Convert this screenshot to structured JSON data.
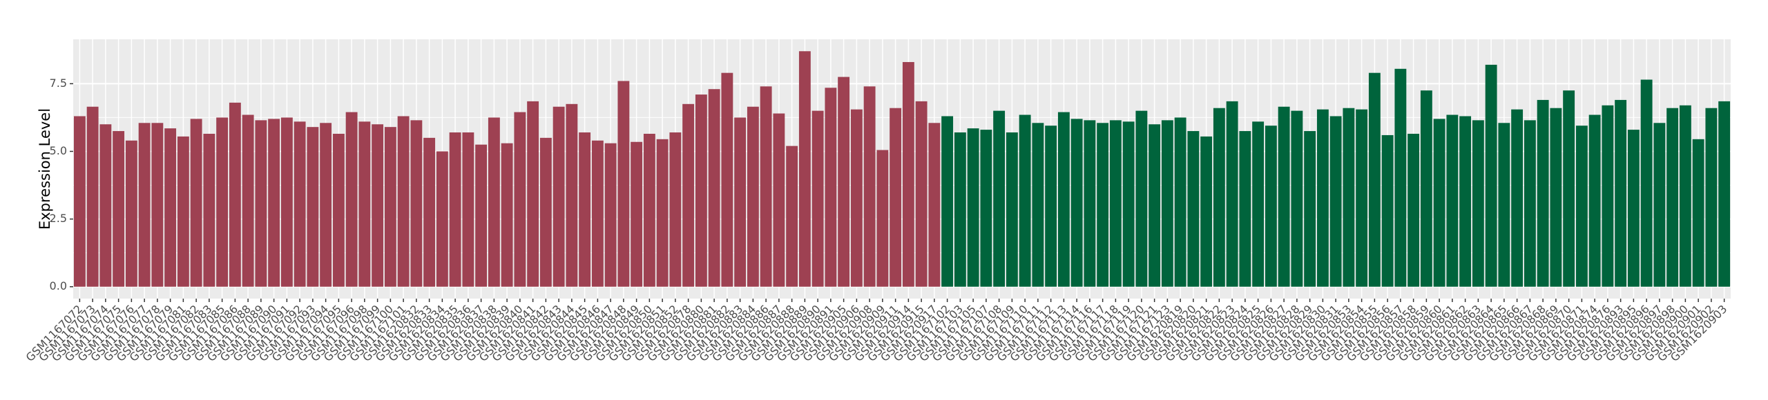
{
  "chart_data": {
    "type": "bar",
    "y_label": "Expression Level",
    "ylim": [
      -0.44,
      9.14
    ],
    "yticks": [
      {
        "value": 0,
        "label": "0.0"
      },
      {
        "value": 2.5,
        "label": "2.5"
      },
      {
        "value": 5,
        "label": "5.0"
      },
      {
        "value": 7.5,
        "label": "7.5"
      }
    ],
    "grid": true,
    "series": [
      {
        "color": "#9e4152",
        "categories": [
          "GSM1167072",
          "GSM1167073",
          "GSM1167074",
          "GSM1167075",
          "GSM1167076",
          "GSM1167077",
          "GSM1167078",
          "GSM1167079",
          "GSM1167081",
          "GSM1167082",
          "GSM1167083",
          "GSM1167085",
          "GSM1167086",
          "GSM1167088",
          "GSM1167089",
          "GSM1167090",
          "GSM1167091",
          "GSM1167092",
          "GSM1167093",
          "GSM1167094",
          "GSM1167095",
          "GSM1167096",
          "GSM1167098",
          "GSM1167099",
          "GSM1167100",
          "GSM1167101",
          "GSM1620832",
          "GSM1620833",
          "GSM1620834",
          "GSM1620835",
          "GSM1620836",
          "GSM1620837",
          "GSM1620838",
          "GSM1620839",
          "GSM1620840",
          "GSM1620841",
          "GSM1620842",
          "GSM1620843",
          "GSM1620844",
          "GSM1620845",
          "GSM1620846",
          "GSM1620847",
          "GSM1620848",
          "GSM1620849",
          "GSM1620850",
          "GSM1620851",
          "GSM1620852",
          "GSM1620878",
          "GSM1620880",
          "GSM1620881",
          "GSM1620882",
          "GSM1620883",
          "GSM1620884",
          "GSM1620886",
          "GSM1620887",
          "GSM1620888",
          "GSM1620889",
          "GSM1620890",
          "GSM1620891",
          "GSM1620905",
          "GSM1620906",
          "GSM1620908",
          "GSM1620909",
          "GSM1620911",
          "GSM1620914",
          "GSM1620915",
          "GSM1620917"
        ],
        "values": [
          6.3,
          6.65,
          6.0,
          5.75,
          5.4,
          6.05,
          6.05,
          5.85,
          5.55,
          6.2,
          5.65,
          6.25,
          6.8,
          6.35,
          6.15,
          6.2,
          6.25,
          6.1,
          5.9,
          6.05,
          5.65,
          6.45,
          6.1,
          6.0,
          5.9,
          6.3,
          6.15,
          5.5,
          5.0,
          5.7,
          5.7,
          5.25,
          6.25,
          5.3,
          6.45,
          6.85,
          5.5,
          6.65,
          6.75,
          5.7,
          5.4,
          5.3,
          7.6,
          5.35,
          5.65,
          5.45,
          5.7,
          6.75,
          7.1,
          7.3,
          7.9,
          6.25,
          6.65,
          7.4,
          6.4,
          5.2,
          8.7,
          6.5,
          7.35,
          7.75,
          6.55,
          7.4,
          5.05,
          6.6,
          8.3,
          6.85,
          6.05
        ]
      },
      {
        "color": "#00643c",
        "categories": [
          "GSM1167102",
          "GSM1167103",
          "GSM1167105",
          "GSM1167107",
          "GSM1167108",
          "GSM1167109",
          "GSM1167110",
          "GSM1167111",
          "GSM1167112",
          "GSM1167113",
          "GSM1167114",
          "GSM1167116",
          "GSM1167117",
          "GSM1167118",
          "GSM1167119",
          "GSM1167120",
          "GSM1167121",
          "GSM1167123",
          "GSM1620819",
          "GSM1620820",
          "GSM1620821",
          "GSM1620822",
          "GSM1620823",
          "GSM1620824",
          "GSM1620825",
          "GSM1620826",
          "GSM1620827",
          "GSM1620828",
          "GSM1620829",
          "GSM1620830",
          "GSM1620831",
          "GSM1620853",
          "GSM1620854",
          "GSM1620855",
          "GSM1620856",
          "GSM1620857",
          "GSM1620858",
          "GSM1620859",
          "GSM1620860",
          "GSM1620861",
          "GSM1620862",
          "GSM1620863",
          "GSM1620864",
          "GSM1620865",
          "GSM1620866",
          "GSM1620867",
          "GSM1620868",
          "GSM1620869",
          "GSM1620870",
          "GSM1620871",
          "GSM1620874",
          "GSM1620876",
          "GSM1620893",
          "GSM1620895",
          "GSM1620896",
          "GSM1620897",
          "GSM1620898",
          "GSM1620900",
          "GSM1620901",
          "GSM1620902",
          "GSM1620903"
        ],
        "values": [
          6.3,
          5.7,
          5.85,
          5.8,
          6.5,
          5.7,
          6.35,
          6.05,
          5.95,
          6.45,
          6.2,
          6.15,
          6.05,
          6.15,
          6.1,
          6.5,
          6.0,
          6.15,
          6.25,
          5.75,
          5.55,
          6.6,
          6.85,
          5.75,
          6.1,
          5.95,
          6.65,
          6.5,
          5.75,
          6.55,
          6.3,
          6.6,
          6.55,
          7.9,
          5.6,
          8.05,
          5.65,
          7.25,
          6.2,
          6.35,
          6.3,
          6.15,
          8.2,
          6.05,
          6.55,
          6.15,
          6.9,
          6.6,
          7.25,
          5.95,
          6.35,
          6.7,
          6.9,
          5.8,
          7.65,
          6.05,
          6.6,
          6.7,
          5.45,
          6.6,
          6.85
        ]
      }
    ]
  }
}
